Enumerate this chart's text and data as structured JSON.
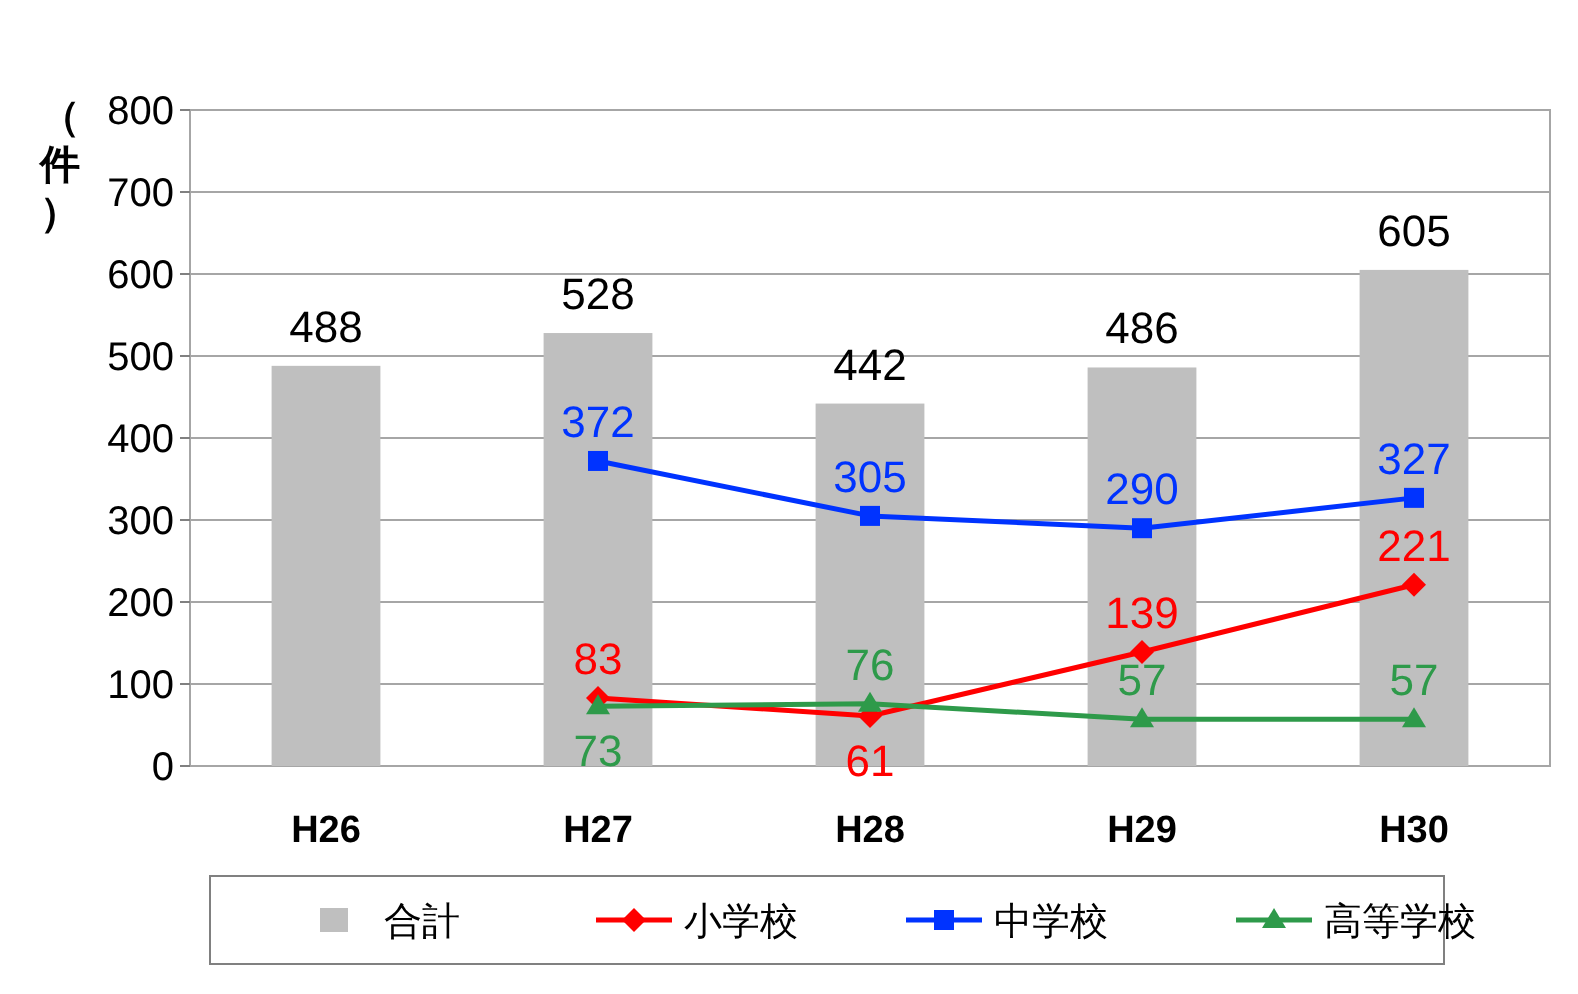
{
  "chart_data": {
    "type": "bar",
    "ylabel": "（件）",
    "categories": [
      "H26",
      "H27",
      "H28",
      "H29",
      "H30"
    ],
    "series": [
      {
        "name": "合計",
        "color": "#bfbfbf",
        "values": [
          488,
          528,
          442,
          486,
          605
        ]
      },
      {
        "name": "小学校",
        "type": "line",
        "color": "#ff0000",
        "marker": "diamond",
        "values": [
          null,
          83,
          61,
          139,
          221
        ]
      },
      {
        "name": "中学校",
        "type": "line",
        "color": "#0033ff",
        "marker": "square",
        "values": [
          null,
          372,
          305,
          290,
          327
        ]
      },
      {
        "name": "高等学校",
        "type": "line",
        "color": "#2e9a4a",
        "marker": "triangle",
        "values": [
          null,
          73,
          76,
          57,
          57
        ]
      }
    ],
    "ylim": [
      0,
      800
    ],
    "yticks": [
      0,
      100,
      200,
      300,
      400,
      500,
      600,
      700,
      800
    ],
    "grid": "y",
    "legend": "bottom",
    "data_labels": true
  }
}
